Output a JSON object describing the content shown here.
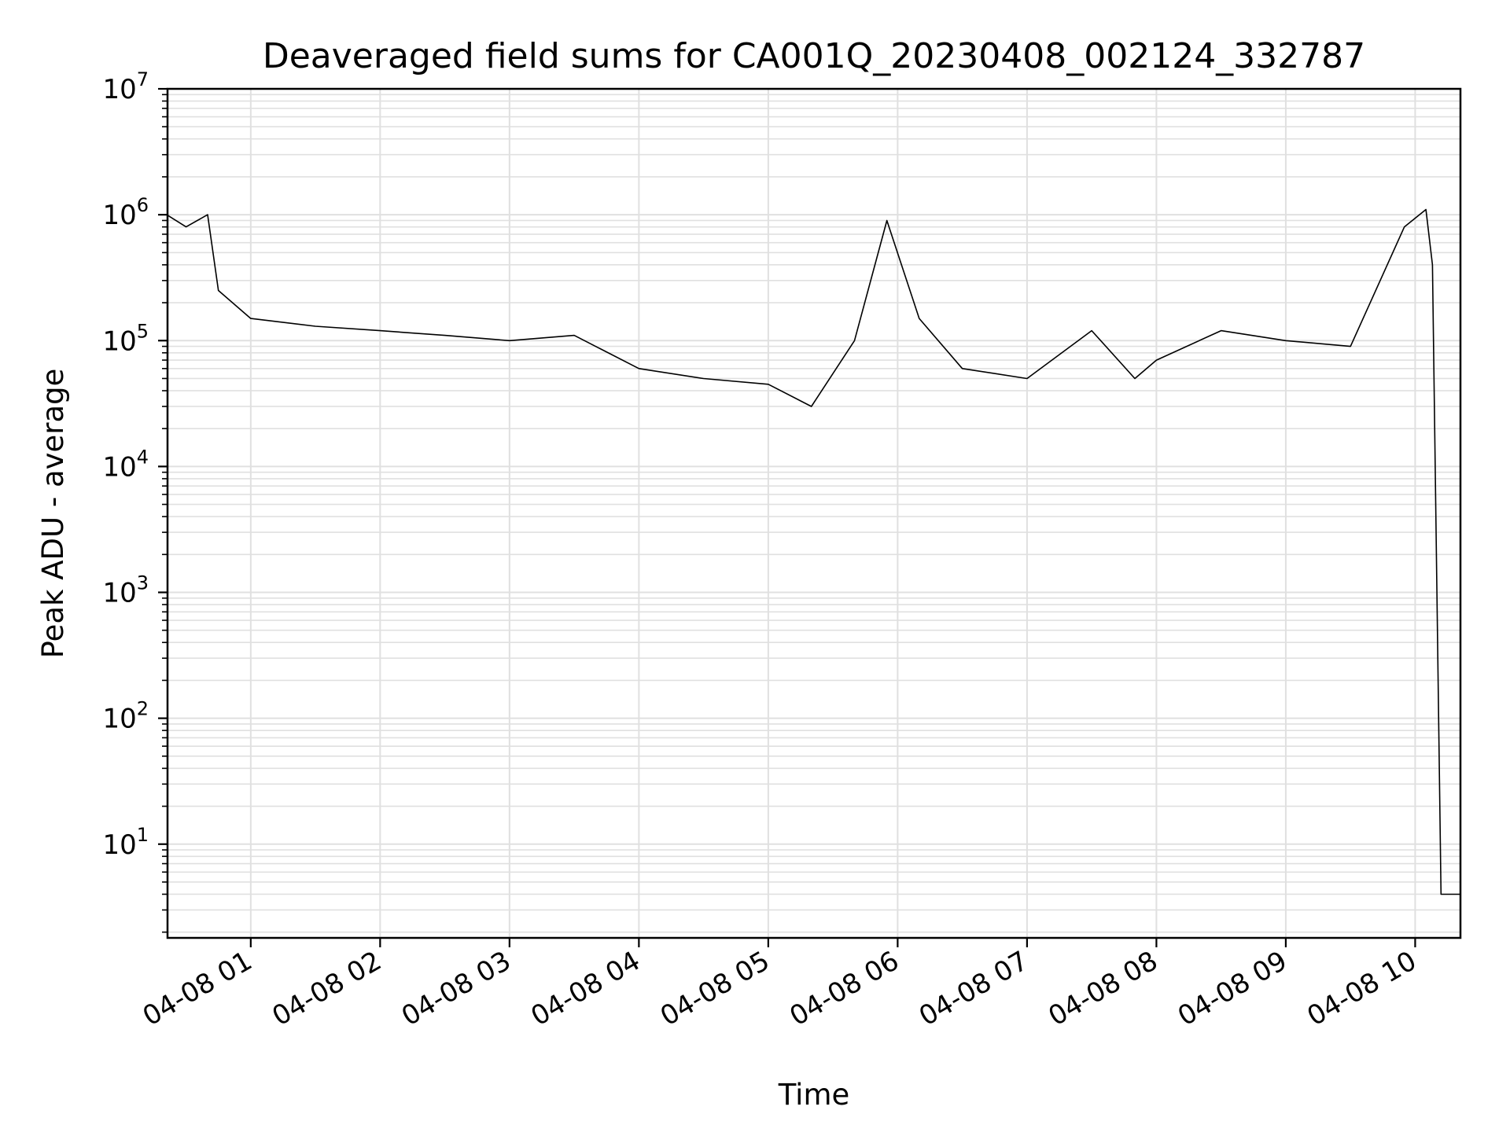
{
  "chart_data": {
    "type": "line",
    "title": "Deaveraged field sums for CA001Q_20230408_002124_332787",
    "xlabel": "Time",
    "ylabel": "Peak ADU - average",
    "yscale": "log",
    "ylim": [
      1.8,
      10000000
    ],
    "xlim": [
      "2023-04-08 00:21:24",
      "2023-04-08 10:21:00"
    ],
    "x_tick_labels": [
      "04-08 01",
      "04-08 02",
      "04-08 03",
      "04-08 04",
      "04-08 05",
      "04-08 06",
      "04-08 07",
      "04-08 08",
      "04-08 09",
      "04-08 10"
    ],
    "y_tick_labels": [
      {
        "base": "10",
        "exp": "1"
      },
      {
        "base": "10",
        "exp": "2"
      },
      {
        "base": "10",
        "exp": "3"
      },
      {
        "base": "10",
        "exp": "4"
      },
      {
        "base": "10",
        "exp": "5"
      },
      {
        "base": "10",
        "exp": "6"
      },
      {
        "base": "10",
        "exp": "7"
      }
    ],
    "grid": true,
    "line_color": "#000000",
    "grid_color": "#e0e0e0",
    "series": [
      {
        "x": [
          "2023-04-08 00:21",
          "2023-04-08 00:30",
          "2023-04-08 00:40",
          "2023-04-08 00:45",
          "2023-04-08 01:00",
          "2023-04-08 01:30",
          "2023-04-08 02:00",
          "2023-04-08 02:30",
          "2023-04-08 03:00",
          "2023-04-08 03:30",
          "2023-04-08 04:00",
          "2023-04-08 04:30",
          "2023-04-08 05:00",
          "2023-04-08 05:20",
          "2023-04-08 05:40",
          "2023-04-08 05:55",
          "2023-04-08 06:10",
          "2023-04-08 06:30",
          "2023-04-08 07:00",
          "2023-04-08 07:30",
          "2023-04-08 07:50",
          "2023-04-08 08:00",
          "2023-04-08 08:30",
          "2023-04-08 09:00",
          "2023-04-08 09:30",
          "2023-04-08 09:55",
          "2023-04-08 10:05",
          "2023-04-08 10:08",
          "2023-04-08 10:12",
          "2023-04-08 10:21"
        ],
        "y": [
          1000000,
          800000,
          1000000,
          250000,
          150000,
          130000,
          120000,
          110000,
          100000,
          110000,
          60000,
          50000,
          45000,
          30000,
          100000,
          900000,
          150000,
          60000,
          50000,
          120000,
          50000,
          70000,
          120000,
          100000,
          90000,
          800000,
          1100000,
          400000,
          4,
          4
        ]
      }
    ]
  }
}
